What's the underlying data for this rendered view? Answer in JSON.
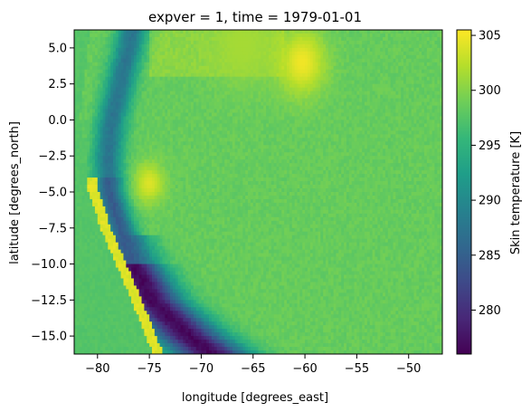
{
  "chart_data": {
    "type": "heatmap",
    "title": "expver = 1, time = 1979-01-01",
    "xlabel": "longitude [degrees_east]",
    "ylabel": "latitude [degrees_north]",
    "colorbar_label": "Skin temperature [K]",
    "colormap": "viridis",
    "xlim": [
      -82.25,
      -46.75
    ],
    "ylim": [
      -16.25,
      6.25
    ],
    "value_range": [
      276,
      305.5
    ],
    "xticks": [
      -80,
      -75,
      -70,
      -65,
      -60,
      -55,
      -50
    ],
    "yticks": [
      -15.0,
      -12.5,
      -10.0,
      -7.5,
      -5.0,
      -2.5,
      0.0,
      2.5,
      5.0
    ],
    "colorbar_ticks": [
      280,
      285,
      290,
      295,
      300,
      305
    ],
    "grid": false,
    "background_value": 298.5,
    "field_description": "Approximate temperature field reconstructed visually: a cold Andean ridge along the western side, a warm coastal strip west of it, warm spots in the north, and generally ~298-299 K elsewhere.",
    "ridge_path": [
      [
        6.25,
        -76.6
      ],
      [
        5.0,
        -77.0
      ],
      [
        2.5,
        -77.8
      ],
      [
        0.0,
        -78.6
      ],
      [
        -2.5,
        -79.0
      ],
      [
        -5.0,
        -78.9
      ],
      [
        -7.5,
        -77.8
      ],
      [
        -10.0,
        -76.6
      ],
      [
        -12.5,
        -74.8
      ],
      [
        -15.0,
        -71.2
      ],
      [
        -16.25,
        -69.0
      ]
    ],
    "coast_path": [
      [
        6.25,
        -80.7
      ],
      [
        2.5,
        -81.3
      ],
      [
        0.0,
        -81.7
      ],
      [
        -2.5,
        -81.0
      ],
      [
        -5.0,
        -80.9
      ],
      [
        -7.5,
        -79.7
      ],
      [
        -10.0,
        -78.2
      ],
      [
        -12.5,
        -76.7
      ],
      [
        -15.0,
        -75.4
      ],
      [
        -16.25,
        -74.6
      ]
    ],
    "hot_spots": [
      {
        "lon": -60.3,
        "lat": 4.0,
        "value": 305.0,
        "radius": 1.6
      },
      {
        "lon": -75.0,
        "lat": -4.4,
        "value": 304.0,
        "radius": 1.0
      },
      {
        "lon": -66.0,
        "lat": 5.2,
        "value": 301.5,
        "radius": 2.0
      }
    ]
  }
}
